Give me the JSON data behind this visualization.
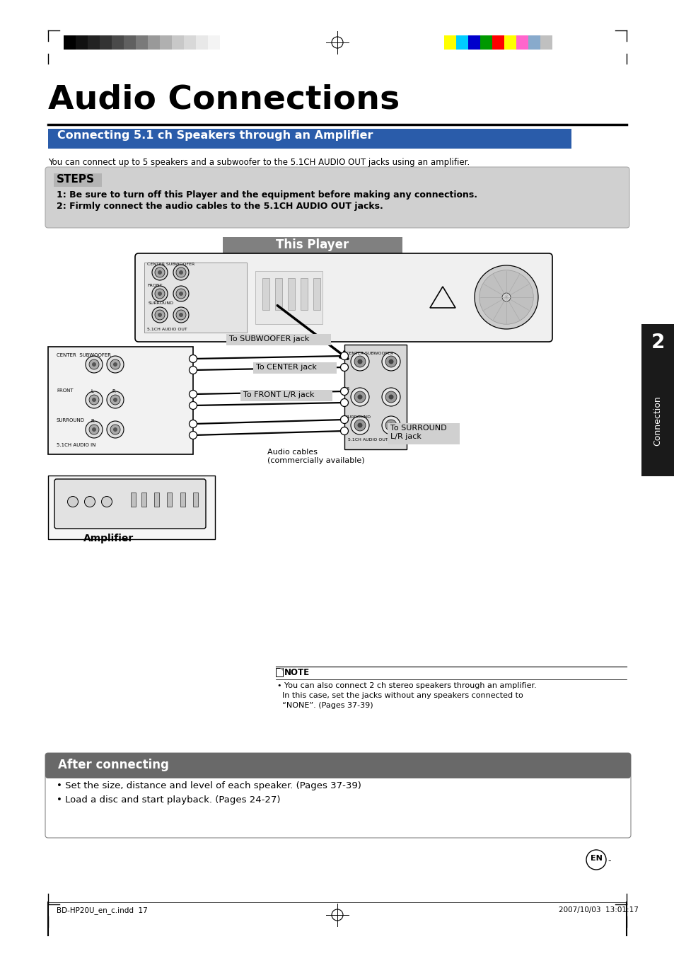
{
  "title": "Audio Connections",
  "section_title": "Connecting 5.1 ch Speakers through an Amplifier",
  "description": "You can connect up to 5 speakers and a subwoofer to the 5.1CH AUDIO OUT jacks using an amplifier.",
  "steps_title": "STEPS",
  "step1": "1: Be sure to turn off this Player and the equipment before making any connections.",
  "step2": "2: Firmly connect the audio cables to the 5.1CH AUDIO OUT jacks.",
  "this_player_label": "This Player",
  "label_subwoofer": "To SUBWOOFER jack",
  "label_center": "To CENTER jack",
  "label_front": "To FRONT L/R jack",
  "label_surround": "To SURROUND\nL/R jack",
  "label_audio_cables": "Audio cables\n(commercially available)",
  "label_amplifier": "Amplifier",
  "after_title": "After connecting",
  "after_bullet1": "• Set the size, distance and level of each speaker. (Pages 37-39)",
  "after_bullet2": "• Load a disc and start playback. (Pages 24-27)",
  "note_title": "NOTE",
  "note_text1": "• You can also connect 2 ch stereo speakers through an amplifier.",
  "note_text2": "  In this case, set the jacks without any speakers connected to",
  "note_text3": "  “NONE”. (Pages 37-39)",
  "connection_label": "Connection",
  "connection_num": "2",
  "page_left": "BD-HP20U_en_c.indd  17",
  "page_right": "2007/10/03  13:01:17",
  "gray_bars": [
    "#000000",
    "#111111",
    "#222222",
    "#333333",
    "#4a4a4a",
    "#606060",
    "#7a7a7a",
    "#999999",
    "#b0b0b0",
    "#c8c8c8",
    "#d8d8d8",
    "#e8e8e8",
    "#f4f4f4"
  ],
  "color_bars": [
    "#ffff00",
    "#00ccff",
    "#0000cc",
    "#009900",
    "#ff0000",
    "#ffff00",
    "#ff66cc",
    "#88aacc",
    "#c0c0c0"
  ],
  "section_bg": "#2a5caa",
  "steps_bg": "#c8c8c8",
  "player_label_bg": "#808080",
  "after_bg": "#696969",
  "sidebar_bg": "#1a1a1a"
}
